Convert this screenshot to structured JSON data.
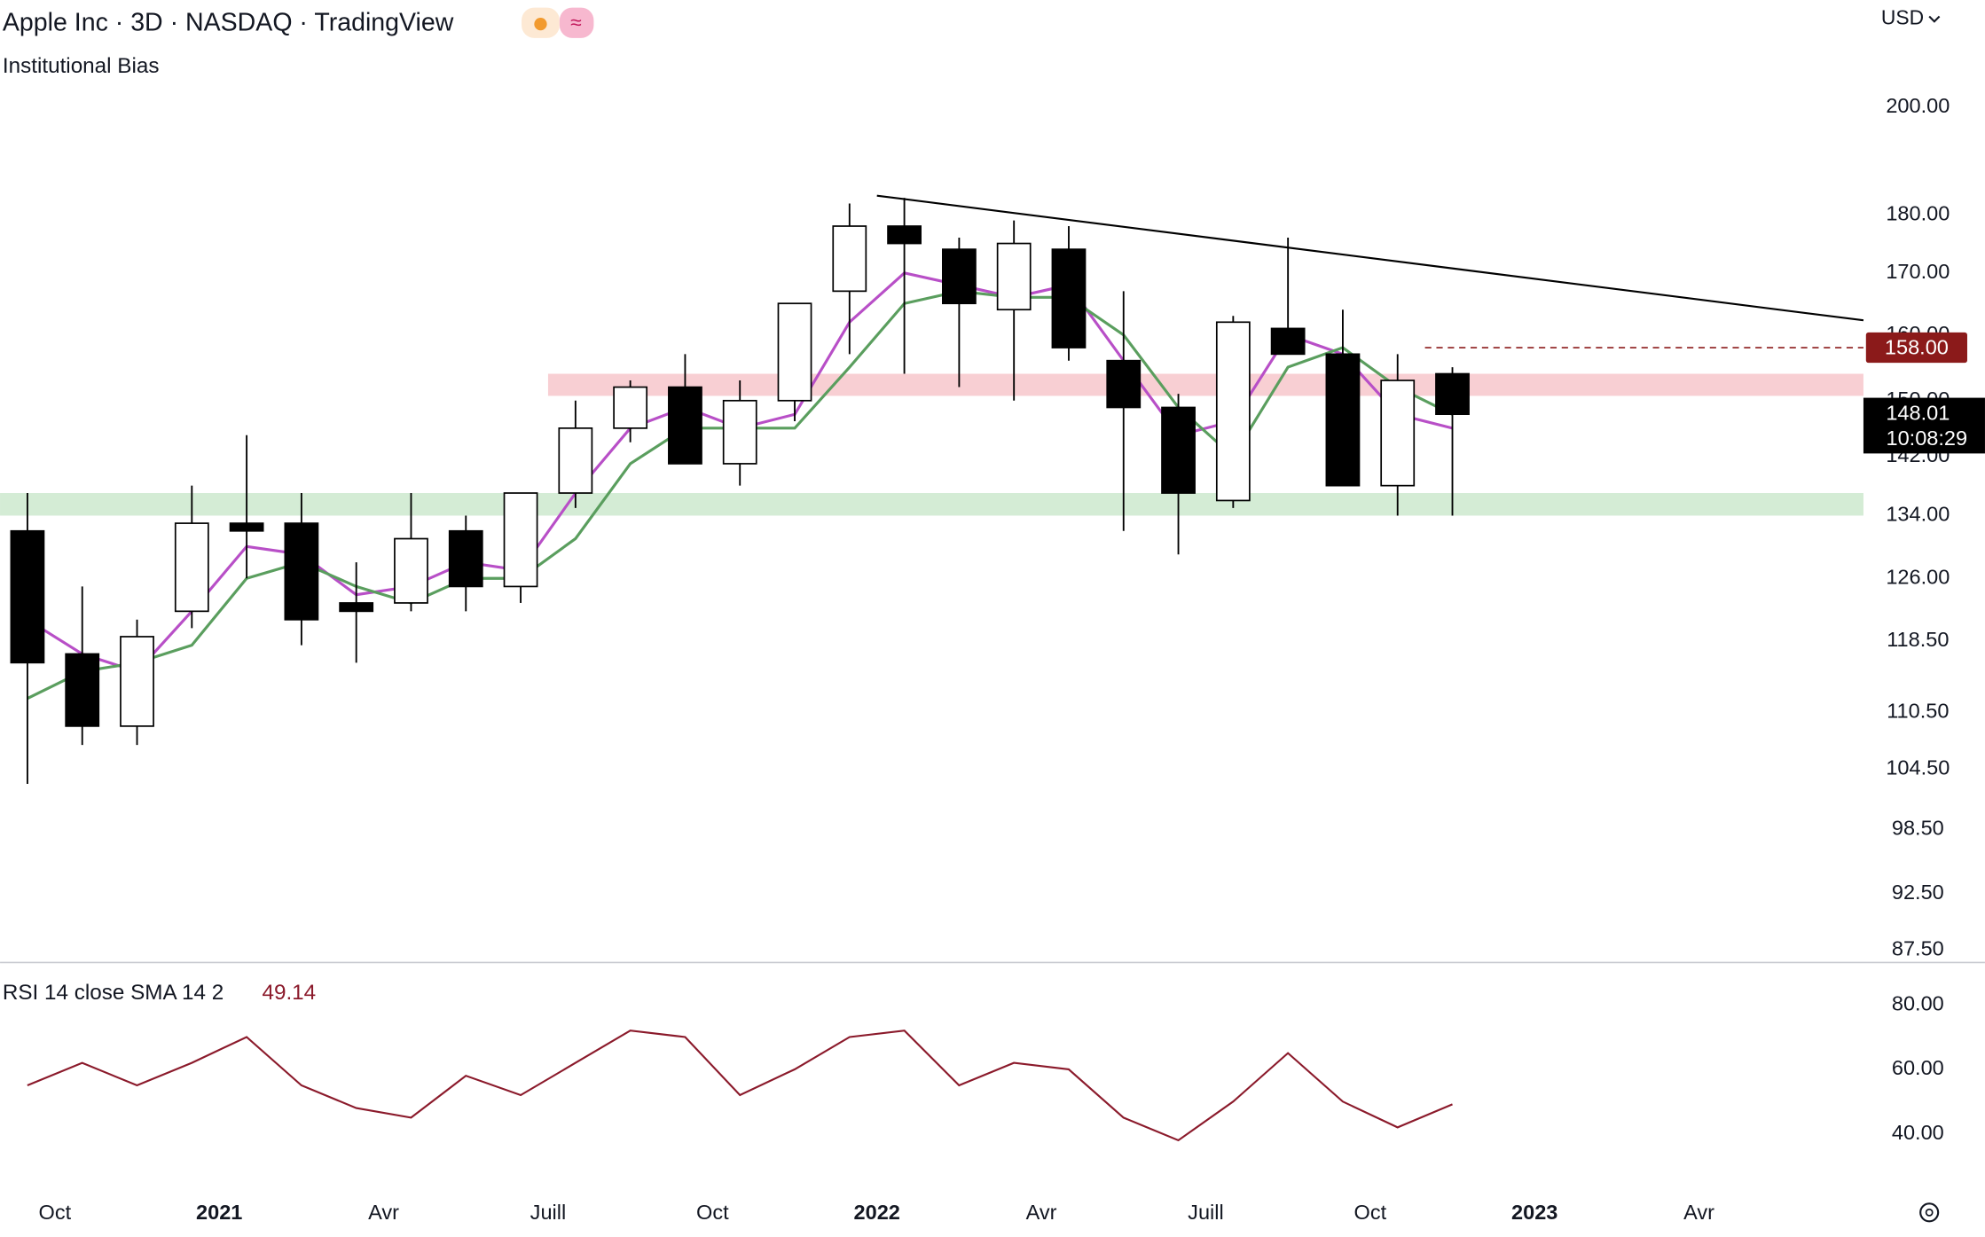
{
  "chart_data": {
    "type": "candlestick",
    "title": "Apple Inc · 3D · NASDAQ · TradingView",
    "subtitle": "Institutional Bias",
    "currency": "USD",
    "x": [
      "2020-09",
      "2020-10",
      "2020-11",
      "2020-12",
      "2021-01",
      "2021-02",
      "2021-03",
      "2021-04",
      "2021-05",
      "2021-06",
      "2021-07",
      "2021-08",
      "2021-09",
      "2021-10",
      "2021-11",
      "2021-12",
      "2022-01",
      "2022-02",
      "2022-03",
      "2022-04",
      "2022-05",
      "2022-06",
      "2022-07",
      "2022-08",
      "2022-09",
      "2022-10",
      "2022-11"
    ],
    "open": [
      132,
      117,
      109,
      122,
      133,
      133,
      123,
      123,
      132,
      125,
      137,
      146,
      152,
      141,
      150,
      167,
      178,
      174,
      164,
      174,
      156,
      149,
      136,
      161,
      157,
      138,
      154
    ],
    "high": [
      137,
      125,
      121,
      138,
      145,
      137,
      128,
      137,
      134,
      137,
      150,
      153,
      157,
      153,
      165,
      182,
      183,
      176,
      179,
      178,
      167,
      151,
      163,
      176,
      164,
      157,
      155
    ],
    "low": [
      103,
      107,
      107,
      120,
      126,
      118,
      116,
      122,
      122,
      123,
      135,
      144,
      141,
      138,
      147,
      157,
      154,
      152,
      150,
      156,
      132,
      129,
      135,
      157,
      138,
      134,
      134
    ],
    "close": [
      116,
      109,
      119,
      133,
      132,
      121,
      122,
      131,
      125,
      137,
      146,
      152,
      141,
      150,
      165,
      178,
      175,
      165,
      175,
      158,
      149,
      137,
      162,
      157,
      138,
      153,
      148.01
    ],
    "up_color": "#ffffff",
    "down_color": "#000000",
    "log_y": true,
    "ylim": [
      86.5,
      222.2
    ],
    "yticks": [
      {
        "value": 200,
        "label": "200.00"
      },
      {
        "value": 180,
        "label": "180.00"
      },
      {
        "value": 170,
        "label": "170.00"
      },
      {
        "value": 160,
        "label": "160.00"
      },
      {
        "value": 150,
        "label": "150.00"
      },
      {
        "value": 142,
        "label": "142.00"
      },
      {
        "value": 134,
        "label": "134.00"
      },
      {
        "value": 126,
        "label": "126.00"
      },
      {
        "value": 118.5,
        "label": "118.50"
      },
      {
        "value": 110.5,
        "label": "110.50"
      },
      {
        "value": 104.5,
        "label": "104.50"
      },
      {
        "value": 98.5,
        "label": "98.50"
      },
      {
        "value": 92.5,
        "label": "92.50"
      },
      {
        "value": 87.5,
        "label": "87.50"
      }
    ],
    "xlim": [
      "2020-09",
      "2023-07"
    ],
    "xticks": [
      {
        "value": "2020-10",
        "label": "Oct"
      },
      {
        "value": "2021-01",
        "label": "2021"
      },
      {
        "value": "2021-04",
        "label": "Avr"
      },
      {
        "value": "2021-07",
        "label": "Juill"
      },
      {
        "value": "2021-10",
        "label": "Oct"
      },
      {
        "value": "2022-01",
        "label": "2022"
      },
      {
        "value": "2022-04",
        "label": "Avr"
      },
      {
        "value": "2022-07",
        "label": "Juill"
      },
      {
        "value": "2022-10",
        "label": "Oct"
      },
      {
        "value": "2023-01",
        "label": "2023"
      },
      {
        "value": "2023-04",
        "label": "Avr"
      }
    ],
    "moving_averages": [
      {
        "color": "#b84fc7",
        "values": [
          121,
          117,
          115,
          122,
          130,
          129,
          124,
          125,
          128,
          127,
          137,
          146,
          149,
          146,
          148,
          162,
          170,
          168,
          166,
          168,
          156,
          145,
          147,
          160,
          157,
          148,
          146
        ]
      },
      {
        "color": "#5a9e5e",
        "values": [
          112,
          115,
          116,
          118,
          126,
          128,
          125,
          123,
          126,
          126,
          131,
          141,
          146,
          146,
          146,
          155,
          165,
          167,
          166,
          166,
          160,
          149,
          142,
          155,
          158,
          152,
          148
        ]
      }
    ],
    "zones": [
      {
        "from": 150.7,
        "to": 154,
        "start": "2021-07",
        "color": "#f8cfd3"
      },
      {
        "from": 134,
        "to": 137,
        "start": "2020-09",
        "color": "#d4ecd5"
      }
    ],
    "trendline": {
      "x": [
        "2022-01",
        "2023-07"
      ],
      "y": [
        183.4,
        162.3
      ],
      "color": "#000000"
    },
    "alert": {
      "value": 158,
      "label": "158.00",
      "start": "2022-11",
      "color": "#8b1a1a"
    },
    "countdown": "10:08:29",
    "rsi": {
      "type": "line",
      "name": "RSI 14 close SMA 14 2",
      "color": "#8b1a2b",
      "values": [
        55,
        62,
        55,
        62,
        70,
        55,
        48,
        45,
        58,
        52,
        62,
        72,
        70,
        52,
        60,
        70,
        72,
        55,
        62,
        60,
        45,
        38,
        50,
        65,
        50,
        42,
        49.14
      ],
      "ylim": [
        22.7,
        92.5
      ],
      "yticks": [
        {
          "value": 80,
          "label": "80.00"
        },
        {
          "value": 60,
          "label": "60.00"
        },
        {
          "value": 40,
          "label": "40.00"
        }
      ]
    }
  }
}
